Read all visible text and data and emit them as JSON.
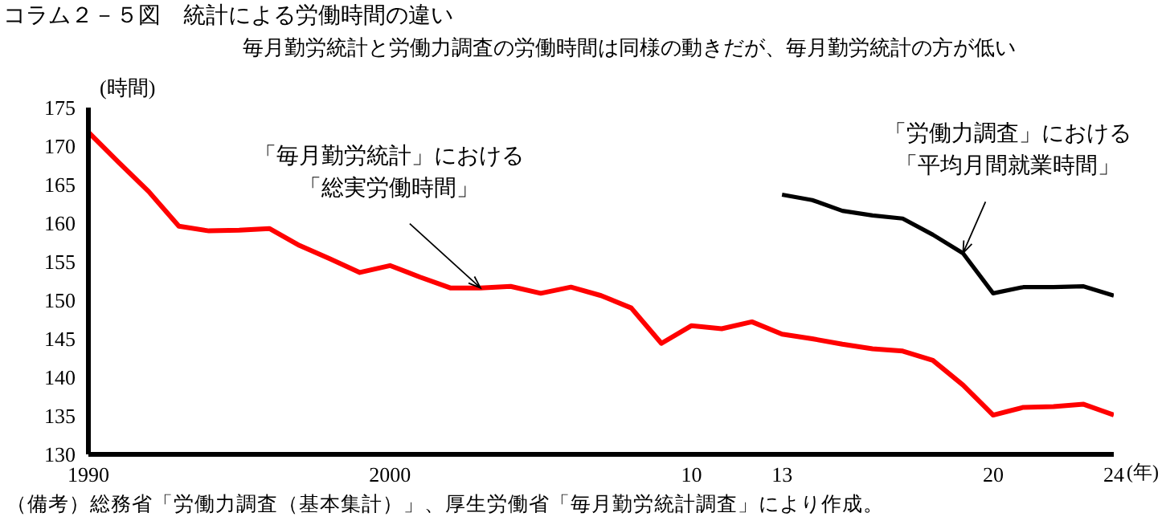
{
  "chart_data": {
    "type": "line",
    "title": "コラム２－５図　統計による労働時間の違い",
    "subtitle": "毎月勤労統計と労働力調査の労働時間は同様の動きだが、毎月勤労統計の方が低い",
    "xlabel": "(年)",
    "ylabel": "(時間)",
    "x": [
      1990,
      1991,
      1992,
      1993,
      1994,
      1995,
      1996,
      1997,
      1998,
      1999,
      2000,
      2001,
      2002,
      2003,
      2004,
      2005,
      2006,
      2007,
      2008,
      2009,
      2010,
      2011,
      2012,
      2013,
      2014,
      2015,
      2016,
      2017,
      2018,
      2019,
      2020,
      2021,
      2022,
      2023,
      2024
    ],
    "series": [
      {
        "color": "#ff0000",
        "values": [
          171.8,
          167.9,
          164.1,
          159.6,
          159.0,
          159.1,
          159.3,
          157.1,
          155.4,
          153.6,
          154.5,
          153.0,
          151.6,
          151.6,
          151.8,
          150.9,
          151.7,
          150.6,
          149.0,
          144.4,
          146.7,
          146.3,
          147.2,
          145.6,
          145.0,
          144.3,
          143.7,
          143.4,
          142.2,
          139.0,
          135.1,
          136.1,
          136.2,
          136.5,
          135.1
        ]
      },
      {
        "color": "#000000",
        "values": [
          null,
          null,
          null,
          null,
          null,
          null,
          null,
          null,
          null,
          null,
          null,
          null,
          null,
          null,
          null,
          null,
          null,
          null,
          null,
          null,
          null,
          null,
          null,
          163.7,
          163.0,
          161.6,
          161.0,
          160.6,
          158.5,
          156.1,
          150.9,
          151.7,
          151.7,
          151.8,
          150.6
        ]
      }
    ],
    "xlim": [
      1990,
      2024
    ],
    "xticks": [
      1990,
      2000,
      {
        "value": 2010,
        "label": "10"
      },
      {
        "value": 2013,
        "label": "13"
      },
      {
        "value": 2020,
        "label": "20"
      },
      {
        "value": 2024,
        "label": "24"
      }
    ],
    "ylim": [
      130,
      175
    ],
    "yticks": [
      130,
      135,
      140,
      145,
      150,
      155,
      160,
      165,
      170,
      175
    ],
    "grid": false,
    "legend": false,
    "marker": "none",
    "line_style": "solid",
    "annotations": [
      {
        "text": "「毎月勤労統計」における「総実労働時間」",
        "x": 2003,
        "y": 151.6
      },
      {
        "text": "「労働力調査」における「平均月間就業時間」",
        "x": 2019,
        "y": 156.1
      },
      "（備考）総務省「労働力調査（基本集計）」、厚生労働省「毎月勤労統計調査」により作成。"
    ]
  }
}
